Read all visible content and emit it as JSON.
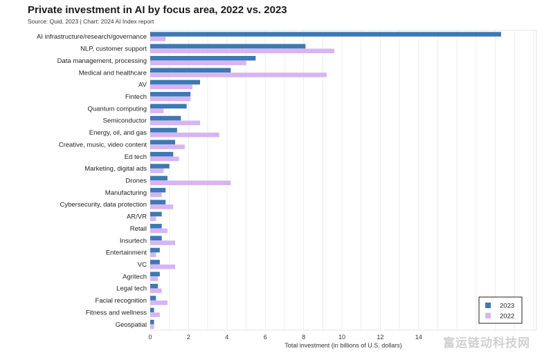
{
  "chart_data": {
    "type": "bar",
    "orientation": "horizontal",
    "title": "Private investment in AI by focus area, 2022 vs. 2023",
    "subtitle": "Source: Quid, 2023 | Chart: 2024 AI Index report",
    "xlabel": "Total investment (in billions of U.S. dollars)",
    "xlim": [
      0,
      18
    ],
    "xticks": [
      0,
      2,
      4,
      6,
      8,
      10,
      12,
      14
    ],
    "grid": true,
    "legend_position": "bottom-right",
    "categories": [
      "AI infrastructure/research/governance",
      "NLP, customer support",
      "Data management, processing",
      "Medical and healthcare",
      "AV",
      "Fintech",
      "Quantum computing",
      "Semiconductor",
      "Energy, oil, and gas",
      "Creative, music, video content",
      "Ed tech",
      "Marketing, digital ads",
      "Drones",
      "Manufacturing",
      "Cybersecurity, data protection",
      "AR/VR",
      "Retail",
      "Insurtech",
      "Entertainment",
      "VC",
      "Agritech",
      "Legal tech",
      "Facial recognition",
      "Fitness and wellness",
      "Geospatial"
    ],
    "series": [
      {
        "name": "2023",
        "color": "#3d79b3",
        "values": [
          18.3,
          8.1,
          5.5,
          4.2,
          2.6,
          2.1,
          1.9,
          1.6,
          1.4,
          1.3,
          1.2,
          1.0,
          0.9,
          0.8,
          0.8,
          0.6,
          0.6,
          0.6,
          0.5,
          0.5,
          0.5,
          0.4,
          0.3,
          0.2,
          0.2
        ]
      },
      {
        "name": "2022",
        "color": "#d6b5f2",
        "values": [
          0.8,
          9.6,
          5.0,
          9.2,
          2.2,
          2.1,
          0.7,
          2.6,
          3.6,
          1.8,
          1.5,
          0.7,
          4.2,
          0.6,
          1.2,
          0.3,
          0.9,
          1.3,
          0.3,
          1.3,
          0.4,
          0.6,
          0.9,
          0.5,
          0.2
        ]
      }
    ]
  },
  "watermark": "富运链动科技网"
}
